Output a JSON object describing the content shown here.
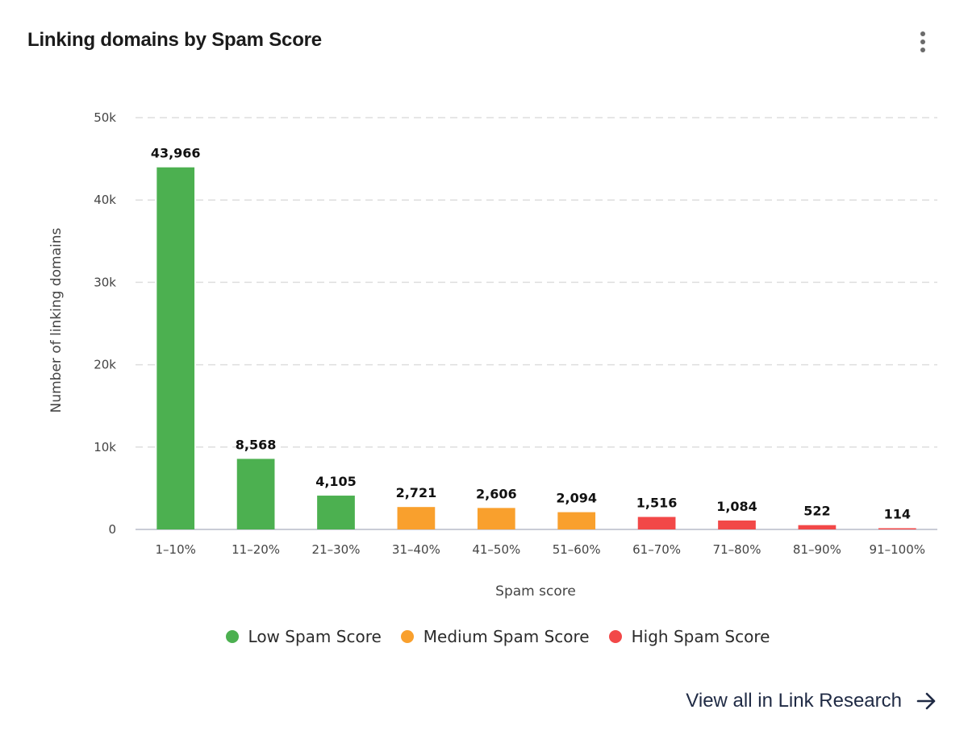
{
  "card": {
    "title": "Linking domains by Spam Score",
    "menu_icon": "kebab-vertical-icon",
    "view_all_label": "View all in Link Research",
    "view_all_icon": "arrow-right-icon"
  },
  "colors": {
    "low": "#4cb050",
    "medium": "#f9a02d",
    "high": "#f24848",
    "grid": "#dedede",
    "axis": "#c9ccd6"
  },
  "chart_data": {
    "type": "bar",
    "title": "Linking domains by Spam Score",
    "xlabel": "Spam score",
    "ylabel": "Number of linking domains",
    "ylim": [
      0,
      50000
    ],
    "yticks": [
      0,
      10000,
      20000,
      30000,
      40000,
      50000
    ],
    "ytick_labels": [
      "0",
      "10k",
      "20k",
      "30k",
      "40k",
      "50k"
    ],
    "grid": true,
    "legend_position": "bottom",
    "categories": [
      "1–10%",
      "11–20%",
      "21–30%",
      "31–40%",
      "41–50%",
      "51–60%",
      "61–70%",
      "71–80%",
      "81–90%",
      "91–100%"
    ],
    "values": [
      43966,
      8568,
      4105,
      2721,
      2606,
      2094,
      1516,
      1084,
      522,
      114
    ],
    "value_labels": [
      "43,966",
      "8,568",
      "4,105",
      "2,721",
      "2,606",
      "2,094",
      "1,516",
      "1,084",
      "522",
      "114"
    ],
    "groups": [
      "low",
      "low",
      "low",
      "medium",
      "medium",
      "medium",
      "high",
      "high",
      "high",
      "high"
    ],
    "legend": [
      {
        "key": "low",
        "label": "Low Spam Score"
      },
      {
        "key": "medium",
        "label": "Medium Spam Score"
      },
      {
        "key": "high",
        "label": "High Spam Score"
      }
    ]
  }
}
